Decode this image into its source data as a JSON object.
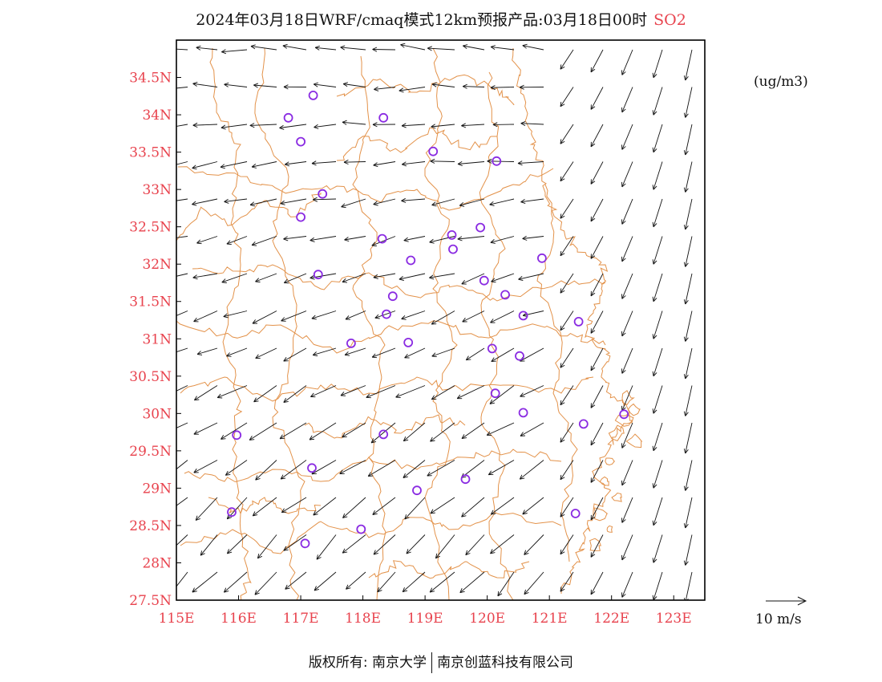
{
  "title": {
    "text": "2024年03月18日WRF/cmaq模式12km预报产品:03月18日00时",
    "pollutant": "SO2"
  },
  "units": "(ug/m3)",
  "reference_vector": {
    "label": "10  m/s",
    "speed": 10
  },
  "copyright": {
    "left": "版权所有: 南京大学",
    "right": "南京创蓝科技有限公司"
  },
  "map": {
    "lon_range": [
      115,
      123.5
    ],
    "lat_range": [
      27.5,
      35
    ],
    "lon_ticks": [
      "115E",
      "116E",
      "117E",
      "118E",
      "119E",
      "120E",
      "121E",
      "122E",
      "123E"
    ],
    "lat_ticks": [
      "27.5N",
      "28N",
      "28.5N",
      "29N",
      "29.5N",
      "30N",
      "30.5N",
      "31N",
      "31.5N",
      "32N",
      "32.5N",
      "33N",
      "33.5N",
      "34N",
      "34.5N"
    ],
    "colors": {
      "axis_labels": "#e8434e",
      "boundaries": "#e3924a",
      "stations": "#8a2be2",
      "vectors": "#111111"
    },
    "stations": [
      {
        "lon": 117.2,
        "lat": 34.26
      },
      {
        "lon": 116.8,
        "lat": 33.96
      },
      {
        "lon": 118.33,
        "lat": 33.96
      },
      {
        "lon": 117.0,
        "lat": 33.64
      },
      {
        "lon": 119.13,
        "lat": 33.51
      },
      {
        "lon": 120.15,
        "lat": 33.38
      },
      {
        "lon": 117.35,
        "lat": 32.94
      },
      {
        "lon": 117.0,
        "lat": 32.63
      },
      {
        "lon": 119.89,
        "lat": 32.49
      },
      {
        "lon": 119.43,
        "lat": 32.39
      },
      {
        "lon": 118.31,
        "lat": 32.34
      },
      {
        "lon": 119.45,
        "lat": 32.2
      },
      {
        "lon": 120.88,
        "lat": 32.08
      },
      {
        "lon": 118.77,
        "lat": 32.05
      },
      {
        "lon": 117.28,
        "lat": 31.86
      },
      {
        "lon": 119.95,
        "lat": 31.78
      },
      {
        "lon": 120.29,
        "lat": 31.59
      },
      {
        "lon": 118.48,
        "lat": 31.57
      },
      {
        "lon": 118.38,
        "lat": 31.33
      },
      {
        "lon": 120.58,
        "lat": 31.31
      },
      {
        "lon": 121.47,
        "lat": 31.23
      },
      {
        "lon": 118.73,
        "lat": 30.95
      },
      {
        "lon": 117.81,
        "lat": 30.94
      },
      {
        "lon": 120.08,
        "lat": 30.87
      },
      {
        "lon": 120.52,
        "lat": 30.77
      },
      {
        "lon": 120.13,
        "lat": 30.27
      },
      {
        "lon": 120.58,
        "lat": 30.01
      },
      {
        "lon": 122.2,
        "lat": 29.99
      },
      {
        "lon": 121.55,
        "lat": 29.86
      },
      {
        "lon": 115.97,
        "lat": 29.71
      },
      {
        "lon": 118.33,
        "lat": 29.72
      },
      {
        "lon": 117.18,
        "lat": 29.27
      },
      {
        "lon": 119.65,
        "lat": 29.12
      },
      {
        "lon": 118.87,
        "lat": 28.97
      },
      {
        "lon": 121.42,
        "lat": 28.66
      },
      {
        "lon": 115.89,
        "lat": 28.68
      },
      {
        "lon": 117.97,
        "lat": 28.45
      },
      {
        "lon": 117.07,
        "lat": 28.26
      }
    ]
  }
}
